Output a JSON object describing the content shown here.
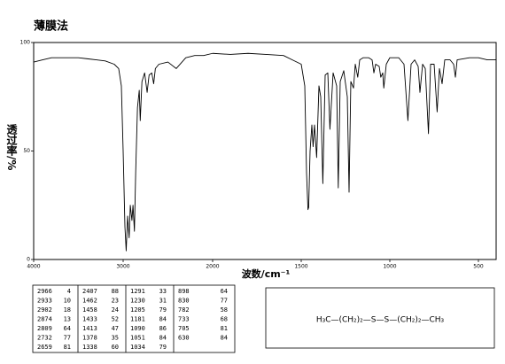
{
  "chart_data": {
    "type": "line",
    "title": "薄膜法",
    "x_label": "波数/cm⁻¹",
    "y_label": "透过率/%",
    "x": [
      4000,
      3900,
      3800,
      3700,
      3600,
      3500,
      3400,
      3300,
      3200,
      3100,
      3050,
      3020,
      3000,
      2980,
      2966,
      2950,
      2933,
      2920,
      2902,
      2890,
      2874,
      2860,
      2840,
      2820,
      2809,
      2790,
      2760,
      2732,
      2710,
      2680,
      2659,
      2640,
      2600,
      2500,
      2407,
      2300,
      2200,
      2100,
      2000,
      1900,
      1800,
      1700,
      1600,
      1550,
      1500,
      1480,
      1470,
      1462,
      1458,
      1450,
      1440,
      1433,
      1425,
      1413,
      1400,
      1390,
      1378,
      1365,
      1350,
      1338,
      1320,
      1300,
      1291,
      1280,
      1260,
      1240,
      1230,
      1220,
      1205,
      1195,
      1181,
      1170,
      1150,
      1120,
      1100,
      1090,
      1080,
      1060,
      1051,
      1040,
      1034,
      1020,
      1000,
      950,
      920,
      898,
      880,
      860,
      840,
      830,
      815,
      800,
      782,
      770,
      750,
      733,
      720,
      705,
      690,
      660,
      640,
      630,
      620,
      550,
      500,
      450,
      400
    ],
    "values": [
      91,
      92,
      93,
      93,
      93,
      93,
      92.5,
      92,
      91.5,
      90,
      88,
      80,
      50,
      15,
      4,
      20,
      10,
      25,
      18,
      25,
      13,
      40,
      70,
      78,
      64,
      82,
      86,
      77,
      85,
      86,
      81,
      88,
      90,
      91,
      88,
      93,
      94,
      94,
      95,
      94.5,
      95,
      94.5,
      94,
      92,
      90,
      80,
      40,
      23,
      24,
      50,
      62,
      52,
      62,
      47,
      80,
      75,
      35,
      85,
      86,
      60,
      86,
      80,
      33,
      82,
      87,
      75,
      31,
      82,
      79,
      90,
      84,
      92,
      93,
      93,
      92,
      86,
      90,
      89,
      84,
      86,
      79,
      90,
      93,
      93,
      90,
      64,
      90,
      92,
      89,
      77,
      90,
      88,
      58,
      90,
      90,
      68,
      88,
      81,
      92,
      92,
      90,
      84,
      92,
      93,
      93,
      92,
      92
    ],
    "color": "#000000",
    "xlim": [
      4000,
      400
    ],
    "xticks": [
      4000,
      3000,
      2000,
      1500,
      1000,
      500
    ],
    "x_scale_change": 2000,
    "ylim": [
      0,
      100
    ],
    "yticks": [
      0,
      50,
      100
    ]
  },
  "peak_table": [
    [
      2966,
      4
    ],
    [
      2933,
      10
    ],
    [
      2902,
      18
    ],
    [
      2874,
      13
    ],
    [
      2809,
      64
    ],
    [
      2732,
      77
    ],
    [
      2659,
      81
    ],
    [
      2407,
      88
    ],
    [
      1462,
      23
    ],
    [
      1458,
      24
    ],
    [
      1433,
      52
    ],
    [
      1413,
      47
    ],
    [
      1378,
      35
    ],
    [
      1338,
      60
    ],
    [
      1291,
      33
    ],
    [
      1230,
      31
    ],
    [
      1205,
      79
    ],
    [
      1181,
      84
    ],
    [
      1090,
      86
    ],
    [
      1051,
      84
    ],
    [
      1034,
      79
    ],
    [
      898,
      64
    ],
    [
      830,
      77
    ],
    [
      782,
      58
    ],
    [
      733,
      68
    ],
    [
      705,
      81
    ],
    [
      630,
      84
    ]
  ],
  "structure": {
    "formula": "H₃C—(CH₂)₂—S—S—(CH₂)₂—CH₃"
  }
}
